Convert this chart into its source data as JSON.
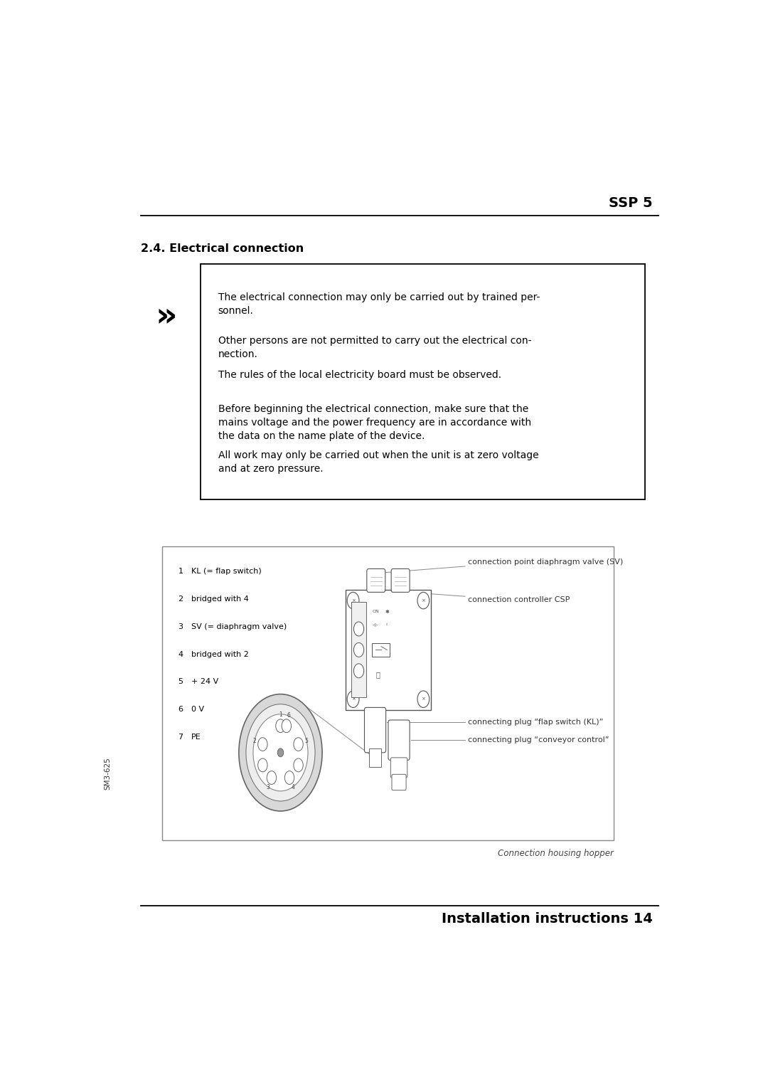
{
  "background_color": "#ffffff",
  "page_width": 10.8,
  "page_height": 15.25,
  "header_text": "SSP 5",
  "section_title": "2.4. Electrical connection",
  "warning_paragraphs": [
    "The electrical connection may only be carried out by trained per-\nsonnel.",
    "Other persons are not permitted to carry out the electrical con-\nnection.",
    "The rules of the local electricity board must be observed.",
    "Before beginning the electrical connection, make sure that the\nmains voltage and the power frequency are in accordance with\nthe data on the name plate of the device.",
    "All work may only be carried out when the unit is at zero voltage\nand at zero pressure."
  ],
  "legend_items": [
    {
      "num": "1",
      "text": "KL (= flap switch)"
    },
    {
      "num": "2",
      "text": "bridged with 4"
    },
    {
      "num": "3",
      "text": "SV (= diaphragm valve)"
    },
    {
      "num": "4",
      "text": "bridged with 2"
    },
    {
      "num": "5",
      "text": "+ 24 V"
    },
    {
      "num": "6",
      "text": "0 V"
    },
    {
      "num": "7",
      "text": "PE"
    }
  ],
  "callout_labels": [
    "connection point diaphragm valve (SV)",
    "connection controller CSP",
    "connecting plug “flap switch (KL)”",
    "connecting plug “conveyor control”"
  ],
  "caption": "Connection housing hopper",
  "footer_text": "Installation instructions 14",
  "side_text": "SM3-625"
}
